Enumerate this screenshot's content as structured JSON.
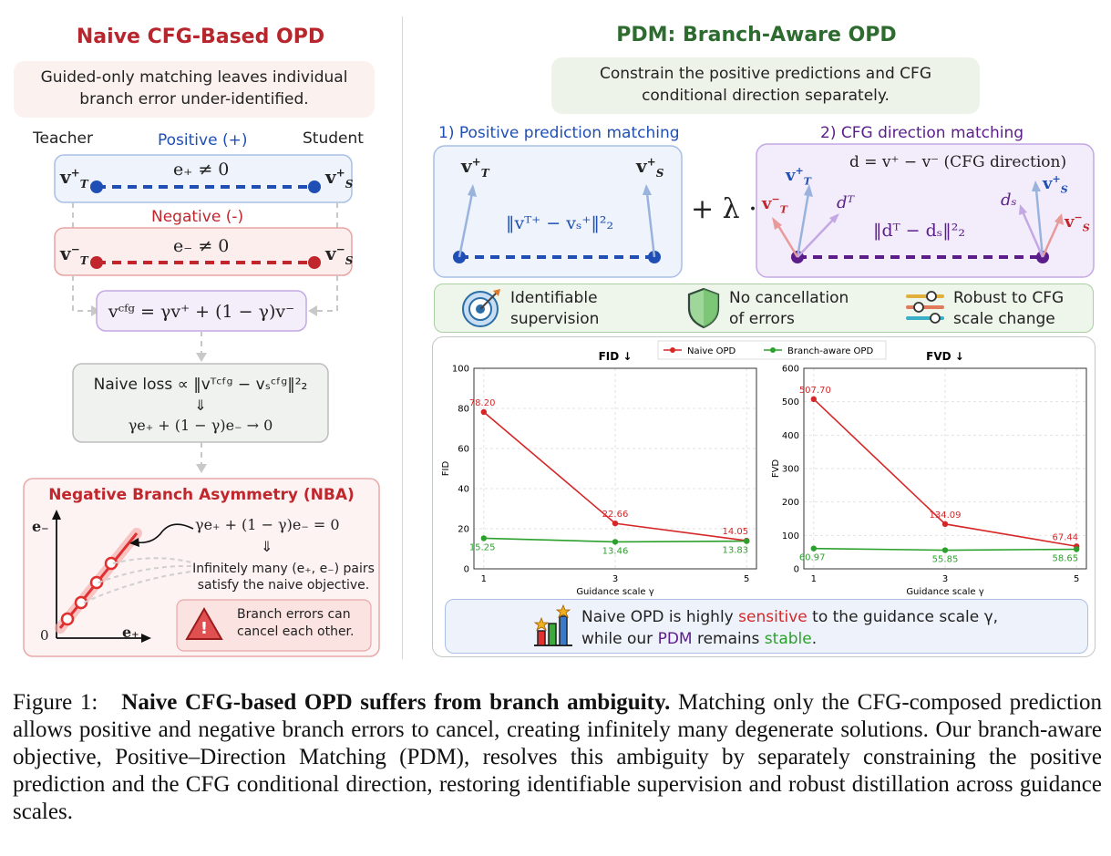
{
  "left": {
    "title": "Naive CFG-Based OPD",
    "note": [
      "Guided-only matching leaves individual",
      "branch error under-identified."
    ],
    "teacher_label": "Teacher",
    "student_label": "Student",
    "positive_label": "Positive (+)",
    "negative_label": "Negative (-)",
    "pos_vt": "v",
    "pos_vs": "v",
    "pos_err": "e₊ ≠ 0",
    "neg_err": "e₋ ≠ 0",
    "cfg_formula": "vᶜᶠᵍ = γv⁺ + (1 − γ)v⁻",
    "naive_loss": "Naive loss ∝ ‖vᵀᶜᶠᵍ − vₛᶜᶠᵍ‖²₂",
    "implies": "⇓",
    "naive_result": "γe₊ + (1 − γ)e₋ → 0",
    "nba_title": "Negative Branch Asymmetry (NBA)",
    "nba_eq": "γe₊ + (1 − γ)e₋ = 0",
    "nba_implies": "⇓",
    "nba_text": [
      "Infinitely many (e₊, e₋) pairs",
      "satisfy the naive objective."
    ],
    "warning_text": [
      "Branch errors can",
      "cancel each other."
    ],
    "axis_y": "e₋",
    "axis_x": "e₊",
    "axis_origin": "0"
  },
  "right": {
    "title": "PDM: Branch-Aware OPD",
    "note": [
      "Constrain the positive predictions and CFG",
      "conditional direction separately."
    ],
    "pos_match_label": "1) Positive prediction matching",
    "cfg_match_label": "2) CFG direction matching",
    "pos_loss": "‖vᵀ⁺ − vₛ⁺‖²₂",
    "plus_lambda": "+ λ ·",
    "d_def": "d = v⁺ − v⁻ (CFG direction)",
    "dir_loss": "‖dᵀ − dₛ‖²₂",
    "d_t": "dᵀ",
    "d_s": "dₛ",
    "features": [
      {
        "icon": "target-icon",
        "text": [
          "Identifiable",
          "supervision"
        ]
      },
      {
        "icon": "shield-icon",
        "text": [
          "No cancellation",
          "of errors"
        ]
      },
      {
        "icon": "sliders-icon",
        "text": [
          "Robust to CFG",
          "scale change"
        ]
      }
    ],
    "summary": {
      "line1_prefix": "Naive OPD is highly ",
      "line1_highlight": "sensitive",
      "line1_suffix": " to the guidance scale γ,",
      "line2_prefix": "while our ",
      "line2_highlight1": "PDM",
      "line2_mid": " remains ",
      "line2_highlight2": "stable",
      "line2_suffix": "."
    }
  },
  "colors": {
    "naive": "#d62728",
    "branch": "#2ca02c",
    "positive": "#1f4fb4",
    "negative": "#c0262c",
    "purple": "#5a1d8a"
  },
  "chart_data": [
    {
      "type": "line",
      "title": "FID ↓",
      "xlabel": "Guidance scale γ",
      "ylabel": "FID",
      "x": [
        1,
        3,
        5
      ],
      "ylim": [
        0,
        100
      ],
      "yticks": [
        0,
        20,
        40,
        60,
        80,
        100
      ],
      "grid": true,
      "legend": "top-center",
      "series": [
        {
          "name": "Naive OPD",
          "values": [
            78.2,
            22.66,
            14.05
          ],
          "labels": [
            "78.20",
            "22.66",
            "14.05"
          ]
        },
        {
          "name": "Branch-aware OPD",
          "values": [
            15.25,
            13.46,
            13.83
          ],
          "labels": [
            "15.25",
            "13.46",
            "13.83"
          ]
        }
      ]
    },
    {
      "type": "line",
      "title": "FVD ↓",
      "xlabel": "Guidance scale γ",
      "ylabel": "FVD",
      "x": [
        1,
        3,
        5
      ],
      "ylim": [
        0,
        600
      ],
      "yticks": [
        0,
        100,
        200,
        300,
        400,
        500,
        600
      ],
      "grid": true,
      "series": [
        {
          "name": "Naive OPD",
          "values": [
            507.7,
            134.09,
            67.44
          ],
          "labels": [
            "507.70",
            "134.09",
            "67.44"
          ]
        },
        {
          "name": "Branch-aware OPD",
          "values": [
            60.97,
            55.85,
            58.65
          ],
          "labels": [
            "60.97",
            "55.85",
            "58.65"
          ]
        }
      ]
    }
  ],
  "caption": {
    "label": "Figure 1:",
    "bold": "Naive CFG-based OPD suffers from branch ambiguity.",
    "text": "Matching only the CFG-composed prediction allows positive and negative branch errors to cancel, creating infinitely many degenerate solutions. Our branch-aware objective, Positive–Direction Matching (PDM), resolves this ambiguity by separately constraining the positive prediction and the CFG conditional direction, restoring identifiable supervision and robust distillation across guidance scales."
  }
}
